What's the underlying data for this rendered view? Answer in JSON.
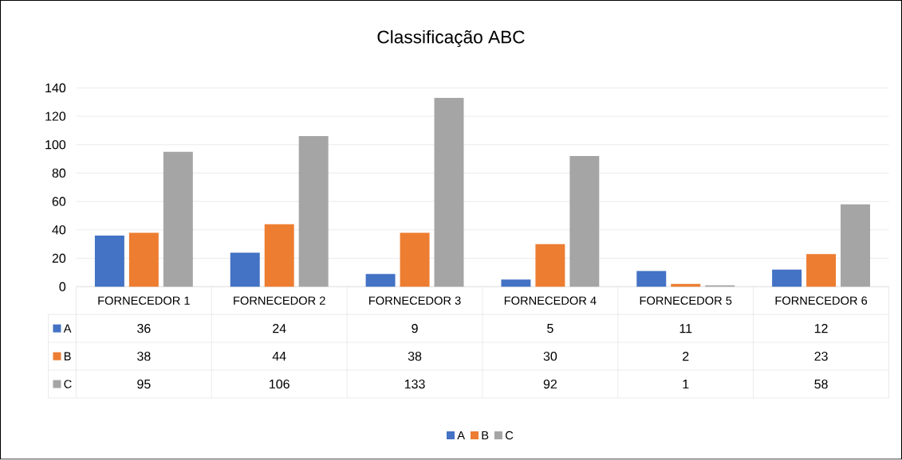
{
  "chart_data": {
    "type": "bar",
    "title": "Classificação ABC",
    "categories": [
      "FORNECEDOR 1",
      "FORNECEDOR 2",
      "FORNECEDOR 3",
      "FORNECEDOR 4",
      "FORNECEDOR 5",
      "FORNECEDOR 6"
    ],
    "series": [
      {
        "name": "A",
        "color": "#4472c4",
        "values": [
          36,
          24,
          9,
          5,
          11,
          12
        ]
      },
      {
        "name": "B",
        "color": "#ed7d31",
        "values": [
          38,
          44,
          38,
          30,
          2,
          23
        ]
      },
      {
        "name": "C",
        "color": "#a5a5a5",
        "values": [
          95,
          106,
          133,
          92,
          1,
          58
        ]
      }
    ],
    "ylim": [
      0,
      140
    ],
    "yticks": [
      0,
      20,
      40,
      60,
      80,
      100,
      120,
      140
    ],
    "grid": "y",
    "legend": "bottom",
    "data_labels": true
  }
}
